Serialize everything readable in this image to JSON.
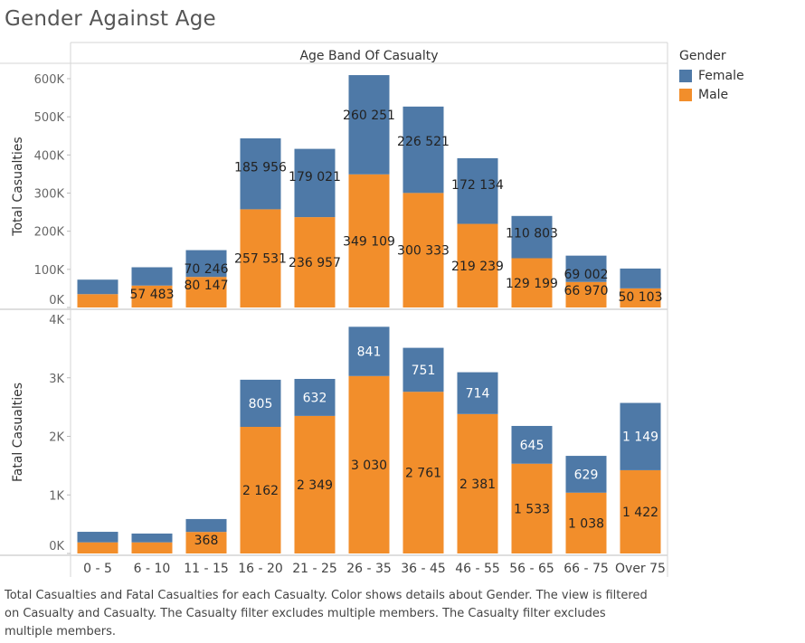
{
  "title": "Gender Against Age",
  "legend": {
    "title": "Gender",
    "items": [
      {
        "label": "Female",
        "color": "#4e79a7"
      },
      {
        "label": "Male",
        "color": "#f28e2b"
      }
    ]
  },
  "caption": "Total Casualties and Fatal Casualties for each Casualty.  Color shows details about Gender. The view is filtered on Casualty and Casualty. The Casualty filter excludes multiple members. The Casualty filter excludes multiple members.",
  "chart_data": [
    {
      "type": "bar",
      "stacked": true,
      "title": "Age Band Of Casualty",
      "ylabel": "Total Casualties",
      "ylim": [
        0,
        640000
      ],
      "yticks": [
        0,
        100000,
        200000,
        300000,
        400000,
        500000,
        600000
      ],
      "ytick_labels": [
        "0K",
        "100K",
        "200K",
        "300K",
        "400K",
        "500K",
        "600K"
      ],
      "categories": [
        "0 - 5",
        "6 - 10",
        "11 - 15",
        "16 - 20",
        "21 - 25",
        "26 - 35",
        "36 - 45",
        "46 - 55",
        "56 - 65",
        "66 - 75",
        "Over 75"
      ],
      "series": [
        {
          "name": "Male",
          "color": "#f28e2b",
          "values": [
            35000,
            57483,
            80147,
            257531,
            236957,
            349109,
            300333,
            219239,
            129199,
            66970,
            50103
          ],
          "labels": [
            "",
            "57 483",
            "80 147",
            "257 531",
            "236 957",
            "349 109",
            "300 333",
            "219 239",
            "129 199",
            "66 970",
            "50 103"
          ]
        },
        {
          "name": "Female",
          "color": "#4e79a7",
          "values": [
            38000,
            48000,
            70246,
            185956,
            179021,
            260251,
            226521,
            172134,
            110803,
            69002,
            52000
          ],
          "labels": [
            "",
            "",
            "70 246",
            "185 956",
            "179 021",
            "260 251",
            "226 521",
            "172 134",
            "110 803",
            "69 002",
            ""
          ]
        }
      ]
    },
    {
      "type": "bar",
      "stacked": true,
      "xlabel": "",
      "ylabel": "Fatal Casualties",
      "ylim": [
        0,
        4100
      ],
      "yticks": [
        0,
        1000,
        2000,
        3000,
        4000
      ],
      "ytick_labels": [
        "0K",
        "1K",
        "2K",
        "3K",
        "4K"
      ],
      "categories": [
        "0 - 5",
        "6 - 10",
        "11 - 15",
        "16 - 20",
        "21 - 25",
        "26 - 35",
        "36 - 45",
        "46 - 55",
        "56 - 65",
        "66 - 75",
        "Over 75"
      ],
      "series": [
        {
          "name": "Male",
          "color": "#f28e2b",
          "values": [
            190,
            190,
            368,
            2162,
            2349,
            3030,
            2761,
            2381,
            1533,
            1038,
            1422
          ],
          "labels": [
            "",
            "",
            "368",
            "2 162",
            "2 349",
            "3 030",
            "2 761",
            "2 381",
            "1 533",
            "1 038",
            "1 422"
          ]
        },
        {
          "name": "Female",
          "color": "#4e79a7",
          "values": [
            180,
            150,
            220,
            805,
            632,
            841,
            751,
            714,
            645,
            629,
            1149
          ],
          "labels": [
            "",
            "",
            "",
            "805",
            "632",
            "841",
            "751",
            "714",
            "645",
            "629",
            "1 149"
          ]
        }
      ]
    }
  ]
}
